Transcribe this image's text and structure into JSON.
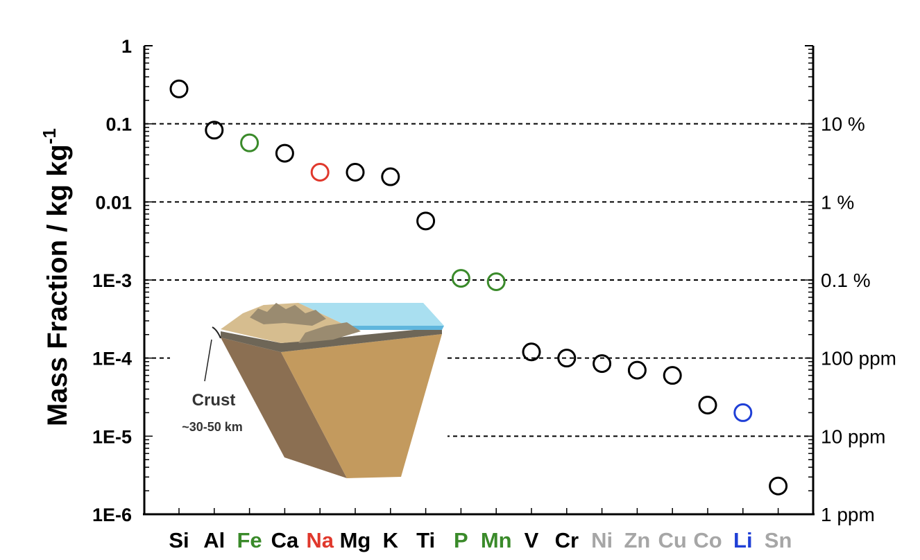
{
  "chart_data": {
    "type": "scatter",
    "ylabel": "Mass Fraction  /  kg kg",
    "ylabel_superscript": "-1",
    "y_scale": "log",
    "ylim": [
      1e-06,
      1
    ],
    "y_ticks": [
      {
        "value": 1,
        "label": "1"
      },
      {
        "value": 0.1,
        "label": "0.1"
      },
      {
        "value": 0.01,
        "label": "0.01"
      },
      {
        "value": 0.001,
        "label": "1E-3"
      },
      {
        "value": 0.0001,
        "label": "1E-4"
      },
      {
        "value": 1e-05,
        "label": "1E-5"
      },
      {
        "value": 1e-06,
        "label": "1E-6"
      }
    ],
    "right_ticks": [
      {
        "value": 0.1,
        "label": "10 %"
      },
      {
        "value": 0.01,
        "label": "1 %"
      },
      {
        "value": 0.001,
        "label": "0.1 %"
      },
      {
        "value": 0.0001,
        "label": "100 ppm"
      },
      {
        "value": 1e-05,
        "label": "10 ppm"
      },
      {
        "value": 1e-06,
        "label": "1 ppm"
      }
    ],
    "grid": "dashed horizontal lines at each decade",
    "points": [
      {
        "label": "Si",
        "value": 0.28,
        "color": "#000000",
        "label_color": "#000000"
      },
      {
        "label": "Al",
        "value": 0.083,
        "color": "#000000",
        "label_color": "#000000"
      },
      {
        "label": "Fe",
        "value": 0.057,
        "color": "#3a8a2a",
        "label_color": "#3a8a2a"
      },
      {
        "label": "Ca",
        "value": 0.042,
        "color": "#000000",
        "label_color": "#000000"
      },
      {
        "label": "Na",
        "value": 0.024,
        "color": "#e0382c",
        "label_color": "#e0382c"
      },
      {
        "label": "Mg",
        "value": 0.024,
        "color": "#000000",
        "label_color": "#000000"
      },
      {
        "label": "K",
        "value": 0.021,
        "color": "#000000",
        "label_color": "#000000"
      },
      {
        "label": "Ti",
        "value": 0.0057,
        "color": "#000000",
        "label_color": "#000000"
      },
      {
        "label": "P",
        "value": 0.00105,
        "color": "#3a8a2a",
        "label_color": "#3a8a2a"
      },
      {
        "label": "Mn",
        "value": 0.00095,
        "color": "#3a8a2a",
        "label_color": "#3a8a2a"
      },
      {
        "label": "V",
        "value": 0.00012,
        "color": "#000000",
        "label_color": "#000000"
      },
      {
        "label": "Cr",
        "value": 0.0001,
        "color": "#000000",
        "label_color": "#000000"
      },
      {
        "label": "Ni",
        "value": 8.5e-05,
        "color": "#000000",
        "label_color": "#a6a6a6"
      },
      {
        "label": "Zn",
        "value": 7e-05,
        "color": "#000000",
        "label_color": "#a6a6a6"
      },
      {
        "label": "Cu",
        "value": 6e-05,
        "color": "#000000",
        "label_color": "#a6a6a6"
      },
      {
        "label": "Co",
        "value": 2.5e-05,
        "color": "#000000",
        "label_color": "#a6a6a6"
      },
      {
        "label": "Li",
        "value": 2e-05,
        "color": "#1f3fd6",
        "label_color": "#1f3fd6"
      },
      {
        "label": "Sn",
        "value": 2.3e-06,
        "color": "#000000",
        "label_color": "#a6a6a6"
      }
    ]
  },
  "inset": {
    "label": "Crust",
    "depth": "~30-50 km"
  }
}
